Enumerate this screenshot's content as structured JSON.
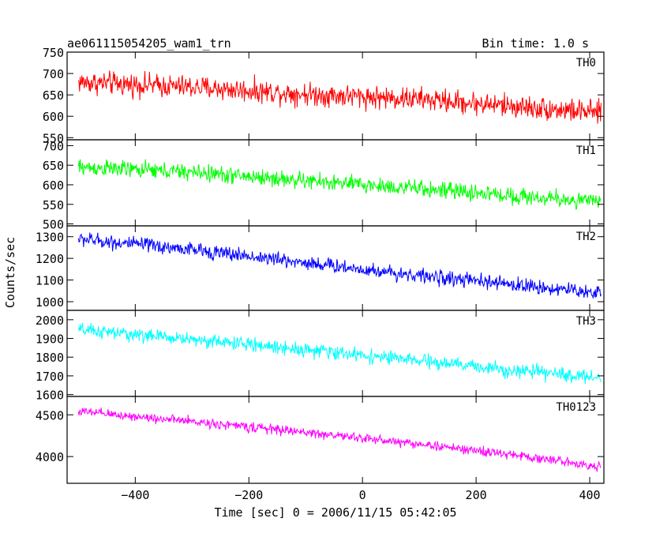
{
  "chart_data": {
    "type": "line",
    "title": "ae061115054205_wam1_trn",
    "subtitle": "Bin time: 1.0 s",
    "xlabel": "Time [sec] 0 = 2006/11/15 05:42:05",
    "ylabel": "Counts/sec",
    "xlim": [
      -520,
      425
    ],
    "x_ticks": [
      -400,
      -200,
      0,
      200,
      400
    ],
    "x_tick_labels": [
      "−400",
      "−200",
      "0",
      "200",
      "400"
    ],
    "data_x_range": [
      -500,
      420
    ],
    "bin_time_sec": 1.0,
    "grid": false,
    "panels": [
      {
        "name": "TH0",
        "color": "#ff0000",
        "ylim": [
          545,
          750
        ],
        "y_ticks": [
          550,
          600,
          650,
          700,
          750
        ],
        "y_tick_labels": [
          "550",
          "600",
          "650",
          "700",
          "750"
        ],
        "trend_x": [
          -500,
          -300,
          -100,
          100,
          300,
          420
        ],
        "trend_y": [
          680,
          668,
          652,
          640,
          620,
          608
        ],
        "noise_amplitude": 40
      },
      {
        "name": "TH1",
        "color": "#00ff00",
        "ylim": [
          495,
          715
        ],
        "y_ticks": [
          500,
          550,
          600,
          650,
          700
        ],
        "y_tick_labels": [
          "500",
          "550",
          "600",
          "650",
          "700"
        ],
        "trend_x": [
          -500,
          -300,
          -100,
          100,
          300,
          420
        ],
        "trend_y": [
          645,
          632,
          610,
          590,
          568,
          556
        ],
        "noise_amplitude": 32
      },
      {
        "name": "TH2",
        "color": "#0000ff",
        "ylim": [
          960,
          1350
        ],
        "y_ticks": [
          1000,
          1100,
          1200,
          1300
        ],
        "y_tick_labels": [
          "1000",
          "1100",
          "1200",
          "1300"
        ],
        "trend_x": [
          -500,
          -300,
          -100,
          100,
          300,
          420
        ],
        "trend_y": [
          1290,
          1240,
          1180,
          1120,
          1070,
          1040
        ],
        "noise_amplitude": 50
      },
      {
        "name": "TH3",
        "color": "#00ffff",
        "ylim": [
          1590,
          2050
        ],
        "y_ticks": [
          1600,
          1700,
          1800,
          1900,
          2000
        ],
        "y_tick_labels": [
          "1600",
          "1700",
          "1800",
          "1900",
          "2000"
        ],
        "trend_x": [
          -500,
          -300,
          -100,
          100,
          300,
          420
        ],
        "trend_y": [
          1945,
          1895,
          1840,
          1780,
          1720,
          1690
        ],
        "noise_amplitude": 55
      },
      {
        "name": "TH0123",
        "color": "#ff00ff",
        "ylim": [
          3680,
          4720
        ],
        "y_ticks": [
          4000,
          4500
        ],
        "y_tick_labels": [
          "4000",
          "4500"
        ],
        "trend_x": [
          -500,
          -300,
          -100,
          100,
          300,
          420
        ],
        "trend_y": [
          4540,
          4420,
          4290,
          4150,
          3990,
          3880
        ],
        "noise_amplitude": 85
      }
    ]
  }
}
